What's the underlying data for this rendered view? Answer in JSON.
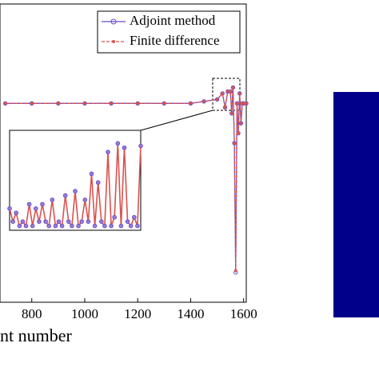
{
  "chart_data": {
    "type": "line",
    "x_label": "nt number",
    "x": [
      700,
      800,
      900,
      1000,
      1100,
      1200,
      1300,
      1400,
      1450,
      1500,
      1520,
      1530,
      1540,
      1550,
      1555,
      1560,
      1565,
      1570,
      1575,
      1580,
      1585,
      1590,
      1595,
      1600,
      1610
    ],
    "series": [
      {
        "name": "Adjoint method",
        "color": "#6a4bc4",
        "values": [
          0,
          0,
          0,
          0,
          0,
          0,
          0,
          0,
          0.01,
          0.02,
          0.05,
          -0.02,
          0.06,
          0.06,
          -0.05,
          0.08,
          -0.2,
          -0.85,
          0.0,
          -0.15,
          0.05,
          -0.1,
          0.0,
          0,
          0
        ]
      },
      {
        "name": "Finite difference",
        "color": "#d9534f",
        "values": [
          0,
          0,
          0,
          0,
          0,
          0,
          0,
          0,
          0.01,
          0.02,
          0.05,
          -0.02,
          0.06,
          0.06,
          -0.05,
          0.08,
          -0.2,
          -0.84,
          0.0,
          -0.15,
          0.05,
          -0.1,
          0.0,
          0,
          0
        ]
      }
    ],
    "xlim": [
      680,
      1610
    ],
    "ylim": [
      -1,
      0.5
    ],
    "xticks": [
      800,
      1000,
      1200,
      1400,
      1600
    ],
    "legend": "top-right",
    "inset": {
      "x": [
        0,
        1,
        2,
        3,
        4,
        5,
        6,
        7,
        8,
        9,
        10,
        11,
        12,
        13,
        14,
        15,
        16,
        17,
        18,
        19,
        20,
        21,
        22,
        23,
        24,
        25,
        26,
        27,
        28,
        29,
        30,
        31,
        32,
        33,
        34,
        35,
        36,
        37,
        38,
        39,
        40
      ],
      "xlim": [
        0,
        40
      ],
      "ylim": [
        -0.05,
        1.1
      ],
      "values": [
        0.2,
        0.05,
        0.15,
        0.0,
        0.05,
        0.0,
        0.25,
        0.0,
        0.2,
        0.05,
        0.25,
        0.05,
        0.0,
        0.3,
        0.0,
        0.05,
        0.0,
        0.35,
        0.05,
        0.0,
        0.4,
        0.0,
        0.05,
        0.3,
        0.05,
        0.6,
        0.0,
        0.5,
        0.05,
        0.0,
        0.85,
        0.0,
        0.1,
        0.95,
        0.0,
        0.9,
        0.05,
        0.0,
        0.1,
        0.0,
        0.92
      ]
    }
  }
}
